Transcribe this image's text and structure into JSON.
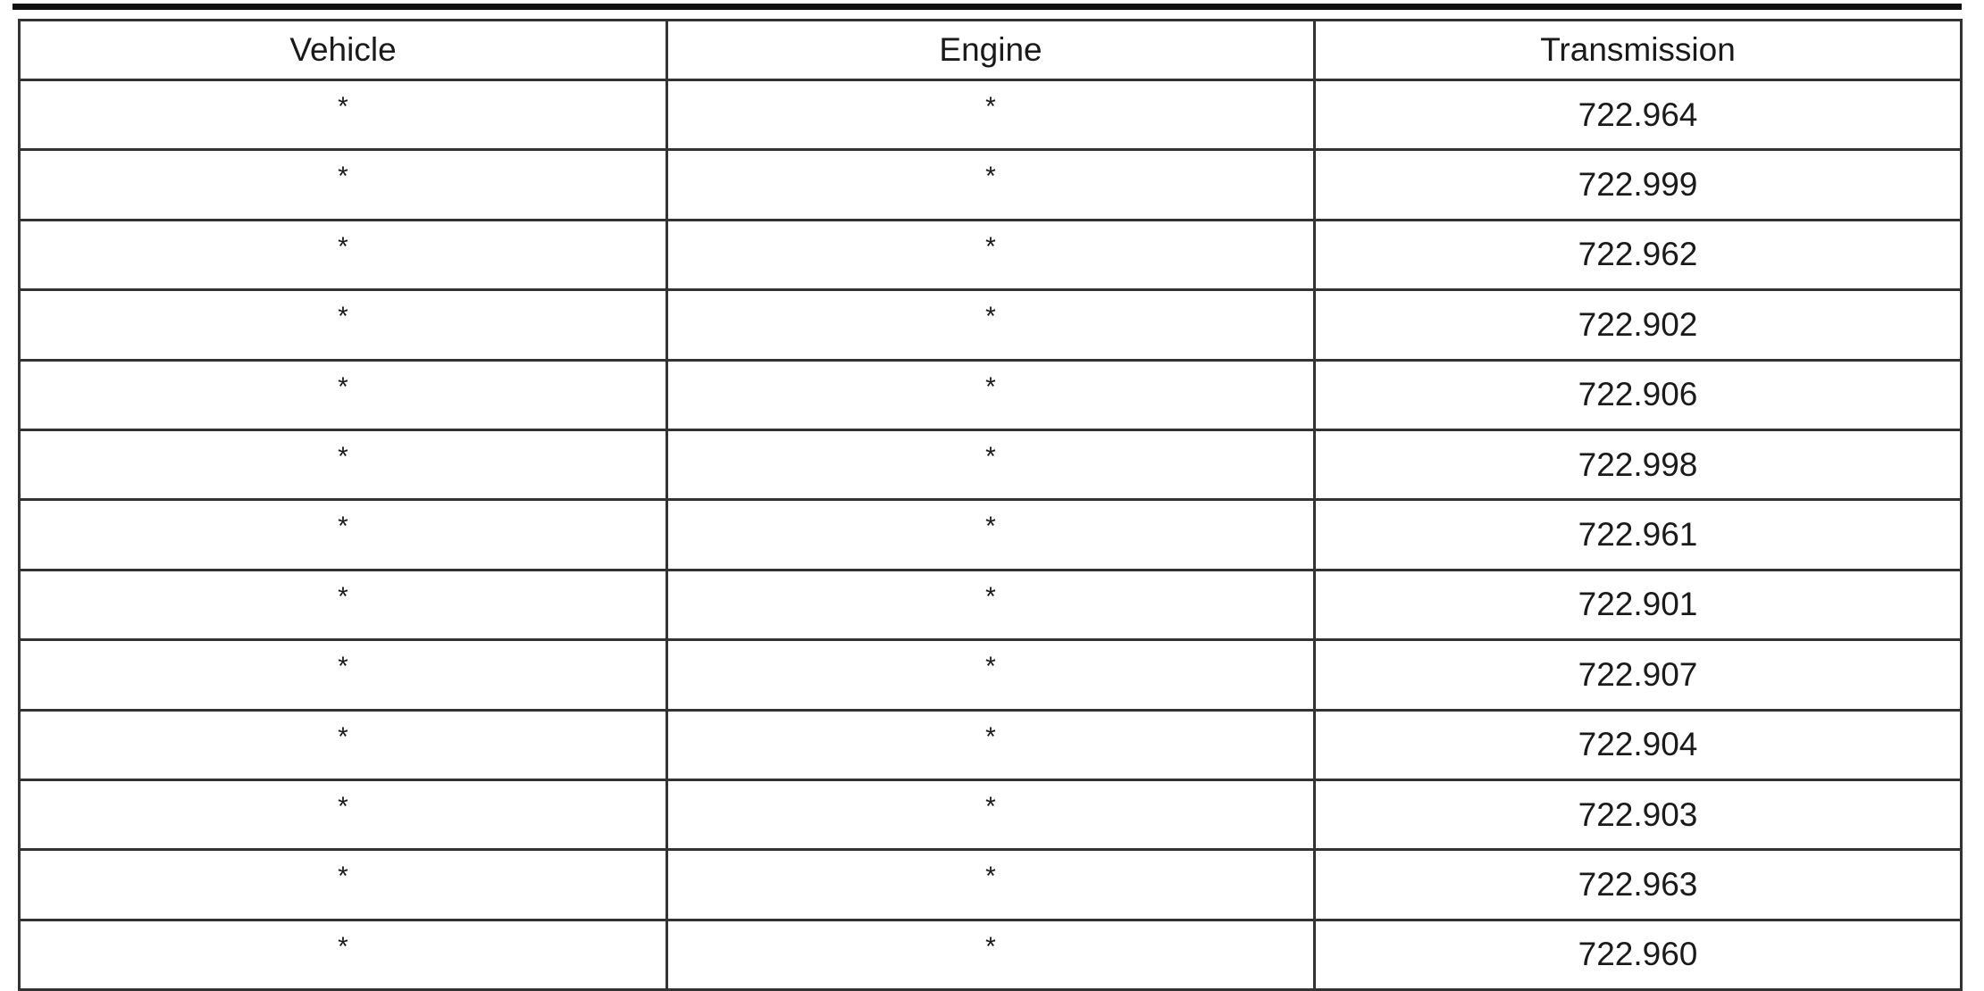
{
  "table": {
    "headers": [
      "Vehicle",
      "Engine",
      "Transmission"
    ],
    "rows": [
      [
        "*",
        "*",
        "722.964"
      ],
      [
        "*",
        "*",
        "722.999"
      ],
      [
        "*",
        "*",
        "722.962"
      ],
      [
        "*",
        "*",
        "722.902"
      ],
      [
        "*",
        "*",
        "722.906"
      ],
      [
        "*",
        "*",
        "722.998"
      ],
      [
        "*",
        "*",
        "722.961"
      ],
      [
        "*",
        "*",
        "722.901"
      ],
      [
        "*",
        "*",
        "722.907"
      ],
      [
        "*",
        "*",
        "722.904"
      ],
      [
        "*",
        "*",
        "722.903"
      ],
      [
        "*",
        "*",
        "722.963"
      ],
      [
        "*",
        "*",
        "722.960"
      ]
    ]
  }
}
